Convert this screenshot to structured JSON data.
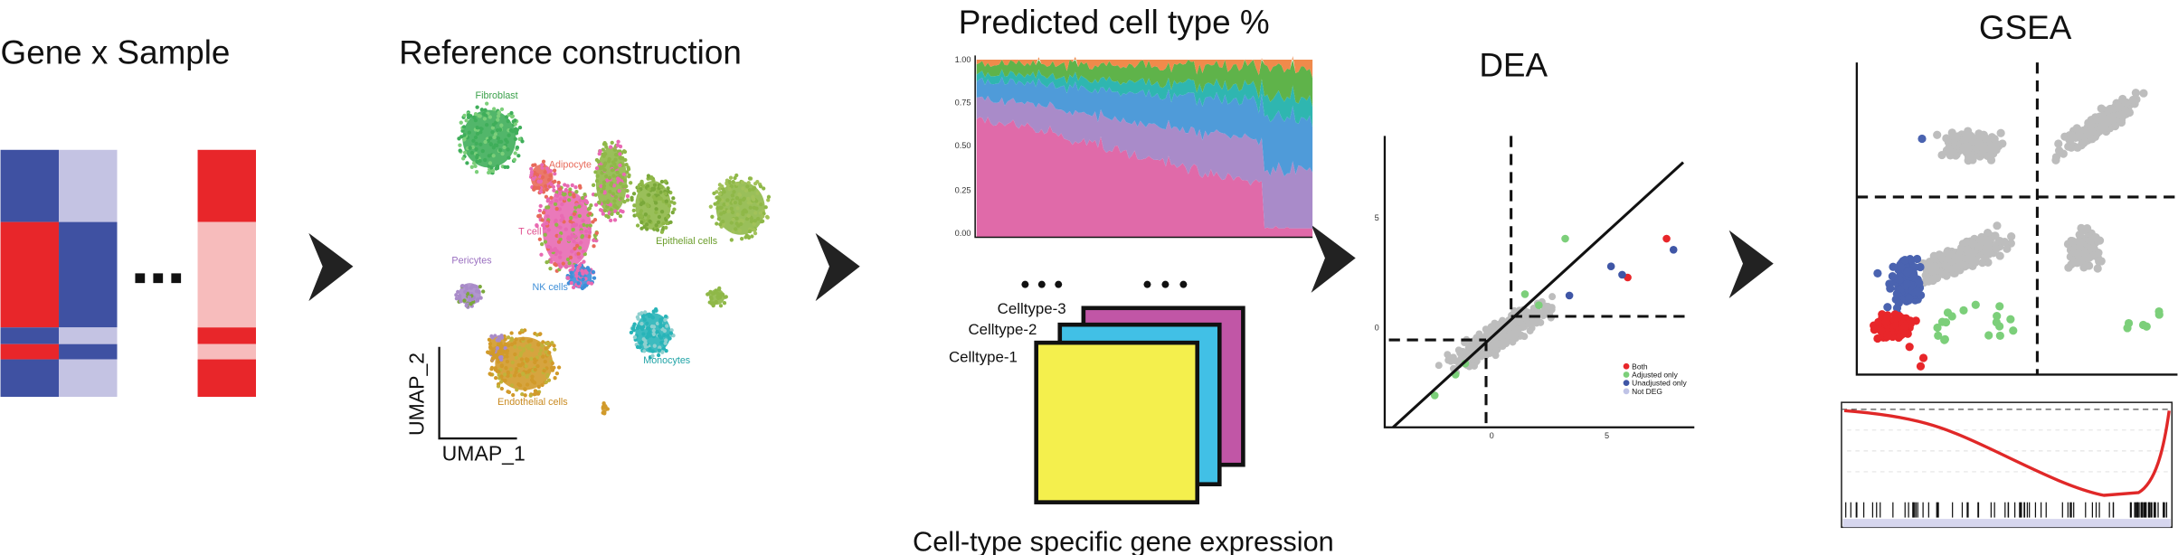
{
  "gene_sample": {
    "title": "Gene x Sample"
  },
  "reference": {
    "title": "Reference construction",
    "x_axis_label": "UMAP_1",
    "y_axis_label": "UMAP_2",
    "clusters": [
      "Fibroblast",
      "Adipocyte",
      "T cell",
      "Epithelial cells",
      "Pericytes",
      "NK cells",
      "Monocytes",
      "Endothelial cells"
    ]
  },
  "deconvolution": {
    "title": "Predicted cell type %",
    "yticks": [
      "1.00",
      "0.75",
      "0.50",
      "0.25",
      "0.00"
    ],
    "layers": [
      "Celltype-3",
      "Celltype-2",
      "Celltype-1"
    ],
    "caption": "Cell-type specific gene expression"
  },
  "dea": {
    "title": "DEA",
    "yticks": [
      "5",
      "0"
    ],
    "xticks": [
      "0",
      "5"
    ],
    "legend": [
      "Both",
      "Adjusted only",
      "Unadjusted only",
      "Not DEG"
    ]
  },
  "gsea": {
    "title": "GSEA"
  }
}
